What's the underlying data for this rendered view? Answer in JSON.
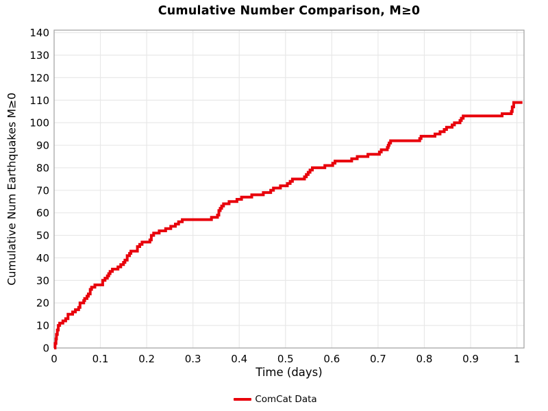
{
  "colors": {
    "line": "#e8000b",
    "grid": "#e8e8e8",
    "spine": "#a6a6a6",
    "text": "#000000",
    "background": "#ffffff"
  },
  "chart_data": {
    "type": "line",
    "line_style": "step-after",
    "title": "Cumulative Number Comparison, M≥0",
    "xlabel": "Time (days)",
    "ylabel": "Cumulative Num Earthquakes M≥0",
    "xlim": [
      0,
      1.0154
    ],
    "ylim": [
      0,
      141.1
    ],
    "grid": true,
    "xticks": [
      0,
      0.1,
      0.2,
      0.3,
      0.4,
      0.5,
      0.6,
      0.7,
      0.8,
      0.9,
      1
    ],
    "xtick_labels": [
      "0",
      "0.1",
      "0.2",
      "0.3",
      "0.4",
      "0.5",
      "0.6",
      "0.7",
      "0.8",
      "0.9",
      "1"
    ],
    "yticks": [
      0,
      10,
      20,
      30,
      40,
      50,
      60,
      70,
      80,
      90,
      100,
      110,
      120,
      130,
      140
    ],
    "ytick_labels": [
      "0",
      "10",
      "20",
      "30",
      "40",
      "50",
      "60",
      "70",
      "80",
      "90",
      "100",
      "110",
      "120",
      "130",
      "140"
    ],
    "legend": {
      "position": "bottom-center",
      "entries": [
        {
          "label": "ComCat Data",
          "color": "#e8000b"
        }
      ]
    },
    "series": [
      {
        "name": "ComCat Data",
        "x": [
          0,
          0.002,
          0.004,
          0.005,
          0.007,
          0.009,
          0.012,
          0.019,
          0.025,
          0.03,
          0.04,
          0.046,
          0.053,
          0.056,
          0.064,
          0.066,
          0.071,
          0.074,
          0.078,
          0.081,
          0.088,
          0.105,
          0.11,
          0.115,
          0.118,
          0.121,
          0.126,
          0.138,
          0.144,
          0.15,
          0.153,
          0.158,
          0.163,
          0.166,
          0.18,
          0.185,
          0.19,
          0.207,
          0.21,
          0.215,
          0.227,
          0.241,
          0.252,
          0.262,
          0.269,
          0.277,
          0.34,
          0.353,
          0.356,
          0.359,
          0.362,
          0.366,
          0.378,
          0.395,
          0.405,
          0.427,
          0.452,
          0.468,
          0.474,
          0.489,
          0.504,
          0.51,
          0.515,
          0.541,
          0.545,
          0.549,
          0.553,
          0.558,
          0.585,
          0.602,
          0.607,
          0.643,
          0.655,
          0.678,
          0.703,
          0.707,
          0.72,
          0.722,
          0.724,
          0.727,
          0.79,
          0.793,
          0.823,
          0.834,
          0.843,
          0.848,
          0.86,
          0.865,
          0.877,
          0.88,
          0.884,
          0.968,
          0.988,
          0.99,
          0.993,
          1.012
        ],
        "y": [
          0,
          2,
          4,
          6,
          8,
          10,
          11,
          12,
          13,
          15,
          16,
          17,
          18,
          20,
          21,
          22,
          23,
          24,
          26,
          27,
          28,
          30,
          31,
          32,
          33,
          34,
          35,
          36,
          37,
          38,
          39,
          41,
          42,
          43,
          45,
          46,
          47,
          48,
          50,
          51,
          52,
          53,
          54,
          55,
          56,
          57,
          58,
          59,
          61,
          62,
          63,
          64,
          65,
          66,
          67,
          68,
          69,
          70,
          71,
          72,
          73,
          74,
          75,
          76,
          77,
          78,
          79,
          80,
          81,
          82,
          83,
          84,
          85,
          86,
          87,
          88,
          89,
          90,
          91,
          92,
          93,
          94,
          95,
          96,
          97,
          98,
          99,
          100,
          101,
          102,
          103,
          104,
          105,
          107,
          109,
          109
        ]
      }
    ]
  }
}
